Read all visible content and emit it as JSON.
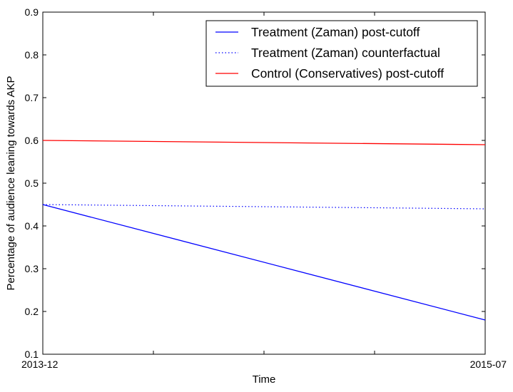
{
  "chart_data": {
    "type": "line",
    "title": "",
    "xlabel": "Time",
    "ylabel": "Percentage of audience leaning towards AKP",
    "x": [
      "2013-12",
      "2015-07"
    ],
    "x_tick_labels": [
      "2013-12",
      "",
      "",
      "",
      "2015-07"
    ],
    "ylim": [
      0.1,
      0.9
    ],
    "y_ticks": [
      0.1,
      0.2,
      0.3,
      0.4,
      0.5,
      0.6,
      0.7,
      0.8,
      0.9
    ],
    "y_tick_labels": [
      "0.1",
      "0.2",
      "0.3",
      "0.4",
      "0.5",
      "0.6",
      "0.7",
      "0.8",
      "0.9"
    ],
    "grid": false,
    "legend_position": "top-right",
    "series": [
      {
        "name": "Treatment (Zaman) post-cutoff",
        "values": [
          0.45,
          0.18
        ],
        "color": "#0000ff",
        "style": "solid"
      },
      {
        "name": "Treatment (Zaman) counterfactual",
        "values": [
          0.45,
          0.44
        ],
        "color": "#0000ff",
        "style": "dotted"
      },
      {
        "name": "Control (Conservatives) post-cutoff",
        "values": [
          0.6,
          0.59
        ],
        "color": "#ff0000",
        "style": "solid"
      }
    ]
  }
}
